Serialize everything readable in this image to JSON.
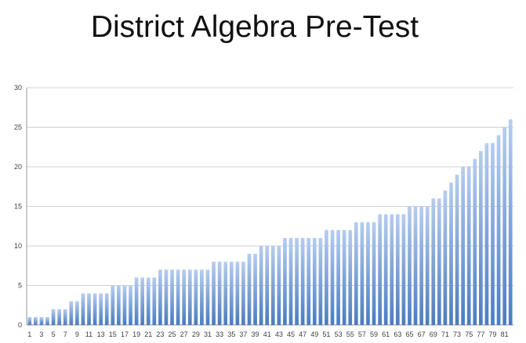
{
  "chart_data": {
    "type": "bar",
    "title": "District Algebra Pre-Test",
    "xlabel": "",
    "ylabel": "",
    "ylim": [
      0,
      30
    ],
    "yticks": [
      0,
      5,
      10,
      15,
      20,
      25,
      30
    ],
    "grid": true,
    "legend": "none",
    "bar_color_top": "#b7cdf0",
    "bar_color_bottom": "#4a7cc0",
    "categories": [
      "1",
      "2",
      "3",
      "4",
      "5",
      "6",
      "7",
      "8",
      "9",
      "10",
      "11",
      "12",
      "13",
      "14",
      "15",
      "16",
      "17",
      "18",
      "19",
      "20",
      "21",
      "22",
      "23",
      "24",
      "25",
      "26",
      "27",
      "28",
      "29",
      "30",
      "31",
      "32",
      "33",
      "34",
      "35",
      "36",
      "37",
      "38",
      "39",
      "40",
      "41",
      "42",
      "43",
      "44",
      "45",
      "46",
      "47",
      "48",
      "49",
      "50",
      "51",
      "52",
      "53",
      "54",
      "55",
      "56",
      "57",
      "58",
      "59",
      "60",
      "61",
      "62",
      "63",
      "64",
      "65",
      "66",
      "67",
      "68",
      "69",
      "70",
      "71",
      "72",
      "73",
      "74",
      "75",
      "76",
      "77",
      "78",
      "79",
      "80",
      "81",
      "82"
    ],
    "xtick_labels": [
      "1",
      "3",
      "5",
      "7",
      "9",
      "11",
      "13",
      "15",
      "17",
      "19",
      "21",
      "23",
      "25",
      "27",
      "29",
      "31",
      "33",
      "35",
      "37",
      "39",
      "41",
      "43",
      "45",
      "47",
      "49",
      "51",
      "53",
      "55",
      "57",
      "59",
      "61",
      "63",
      "65",
      "67",
      "69",
      "71",
      "73",
      "75",
      "77",
      "79",
      "81"
    ],
    "values": [
      1,
      1,
      1,
      1,
      2,
      2,
      2,
      3,
      3,
      4,
      4,
      4,
      4,
      4,
      5,
      5,
      5,
      5,
      6,
      6,
      6,
      6,
      7,
      7,
      7,
      7,
      7,
      7,
      7,
      7,
      7,
      8,
      8,
      8,
      8,
      8,
      8,
      9,
      9,
      10,
      10,
      10,
      10,
      11,
      11,
      11,
      11,
      11,
      11,
      11,
      12,
      12,
      12,
      12,
      12,
      13,
      13,
      13,
      13,
      14,
      14,
      14,
      14,
      14,
      15,
      15,
      15,
      15,
      16,
      16,
      17,
      18,
      19,
      20,
      20,
      21,
      22,
      23,
      23,
      24,
      25,
      26
    ]
  }
}
